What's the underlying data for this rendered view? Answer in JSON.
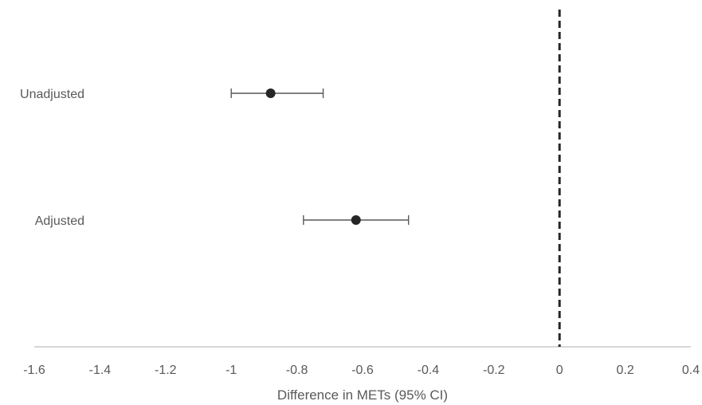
{
  "chart_data": {
    "type": "scatter",
    "title": "",
    "xlabel": "Difference in METs (95% CI)",
    "ylabel": "",
    "xlim": [
      -1.6,
      0.4
    ],
    "x_ticks": [
      -1.6,
      -1.4,
      -1.2,
      -1,
      -0.8,
      -0.6,
      -0.4,
      -0.2,
      0,
      0.2,
      0.4
    ],
    "x_tick_labels": [
      "-1.6",
      "-1.4",
      "-1.2",
      "-1",
      "-0.8",
      "-0.6",
      "-0.4",
      "-0.2",
      "0",
      "0.2",
      "0.4"
    ],
    "grid": false,
    "reference_line": {
      "x": 0,
      "style": "dashed"
    },
    "categories": [
      "Unadjusted",
      "Adjusted"
    ],
    "points": [
      {
        "label": "Unadjusted",
        "estimate": -0.88,
        "ci_low": -1.0,
        "ci_high": -0.72
      },
      {
        "label": "Adjusted",
        "estimate": -0.62,
        "ci_low": -0.78,
        "ci_high": -0.46
      }
    ]
  },
  "colors": {
    "point": "#262626",
    "errorbar": "#595959",
    "axis": "#bfbfbf",
    "reference_line": "#262626",
    "text": "#595959"
  }
}
